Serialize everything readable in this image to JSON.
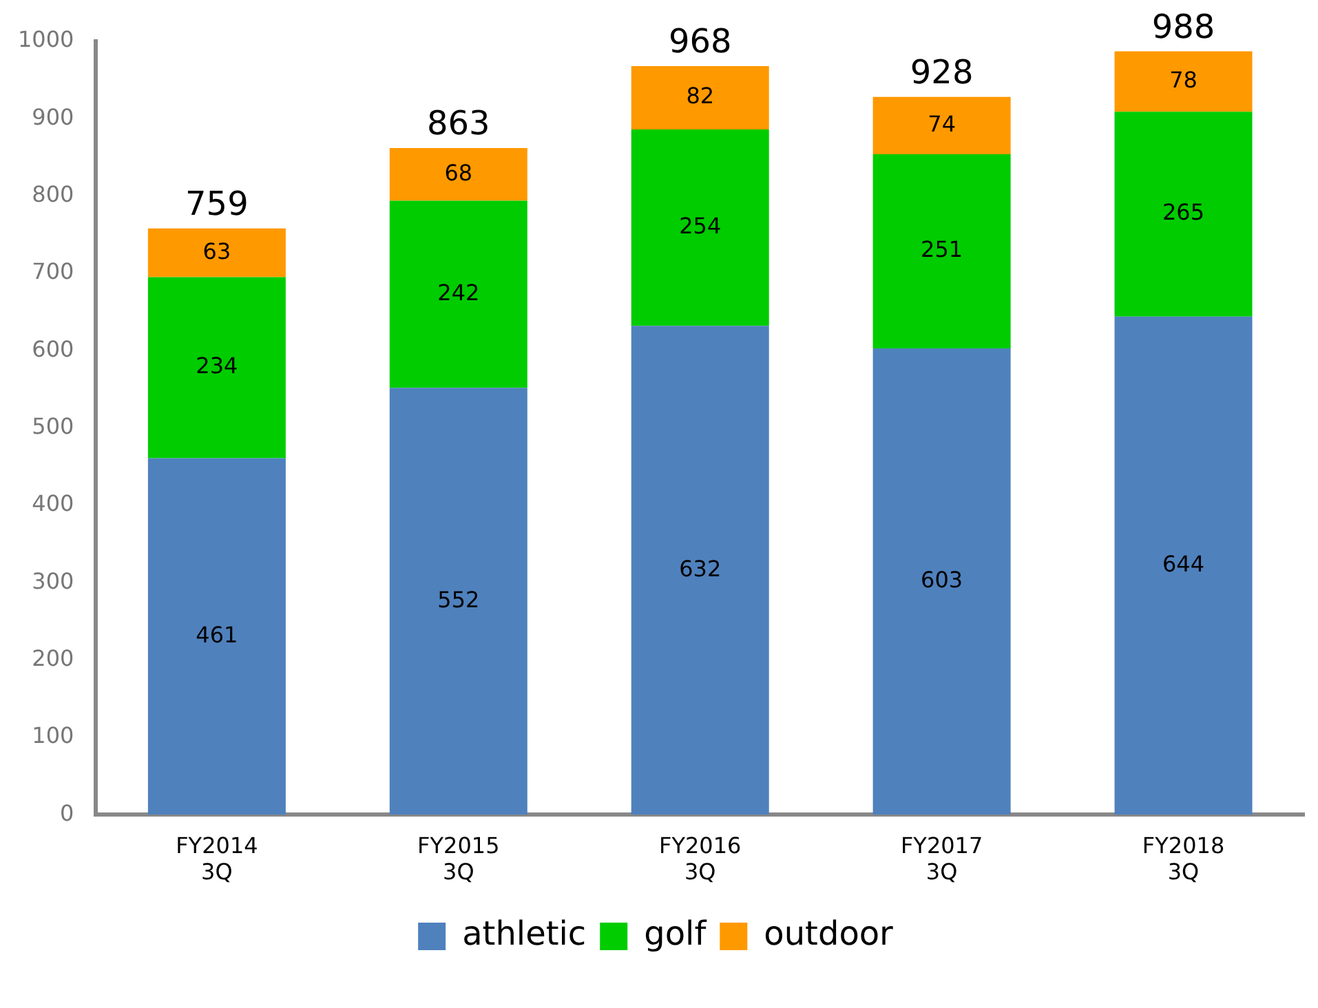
{
  "chart_data": {
    "type": "bar",
    "stacked": true,
    "categories": [
      "FY2014\n3Q",
      "FY2015\n3Q",
      "FY2016\n3Q",
      "FY2017\n3Q",
      "FY2018\n3Q"
    ],
    "series": [
      {
        "name": "athletic",
        "color": "#4f81bd",
        "values": [
          461,
          552,
          632,
          603,
          644
        ]
      },
      {
        "name": "golf",
        "color": "#00cc00",
        "values": [
          234,
          242,
          254,
          251,
          265
        ]
      },
      {
        "name": "outdoor",
        "color": "#ff9900",
        "values": [
          63,
          68,
          82,
          74,
          78
        ]
      }
    ],
    "ylim": [
      0,
      1000
    ],
    "yticks": [
      0,
      100,
      200,
      300,
      400,
      500,
      600,
      700,
      800,
      900,
      1000
    ],
    "data_labels": true,
    "totals": [
      "759",
      "863",
      "968",
      "928",
      "988"
    ],
    "grid": false,
    "legend": "bottom"
  }
}
